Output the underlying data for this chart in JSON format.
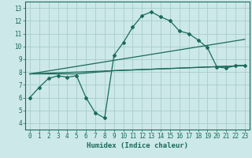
{
  "background_color": "#cce8e8",
  "grid_color": "#aacccc",
  "line_color": "#1a6b5a",
  "xlabel": "Humidex (Indice chaleur)",
  "xlim": [
    -0.5,
    23.5
  ],
  "ylim": [
    3.5,
    13.5
  ],
  "xticks": [
    0,
    1,
    2,
    3,
    4,
    5,
    6,
    7,
    8,
    9,
    10,
    11,
    12,
    13,
    14,
    15,
    16,
    17,
    18,
    19,
    20,
    21,
    22,
    23
  ],
  "yticks": [
    4,
    5,
    6,
    7,
    8,
    9,
    10,
    11,
    12,
    13
  ],
  "series": [
    {
      "x": [
        0,
        1,
        2,
        3,
        4,
        5,
        6,
        7,
        8,
        9,
        10,
        11,
        12,
        13,
        14,
        15,
        16,
        17,
        18,
        19,
        20,
        21,
        22,
        23
      ],
      "y": [
        6.0,
        6.8,
        7.5,
        7.7,
        7.6,
        7.7,
        6.0,
        4.8,
        4.4,
        9.3,
        10.3,
        11.5,
        12.4,
        12.7,
        12.3,
        12.0,
        11.2,
        11.0,
        10.5,
        9.9,
        8.4,
        8.3,
        8.5,
        8.5
      ],
      "has_markers": true
    },
    {
      "x": [
        0,
        23
      ],
      "y": [
        7.85,
        8.5
      ],
      "has_markers": false
    },
    {
      "x": [
        0,
        23
      ],
      "y": [
        7.85,
        10.55
      ],
      "has_markers": false
    },
    {
      "x": [
        0,
        5,
        9,
        23
      ],
      "y": [
        7.85,
        7.85,
        8.1,
        8.5
      ],
      "has_markers": false
    }
  ]
}
